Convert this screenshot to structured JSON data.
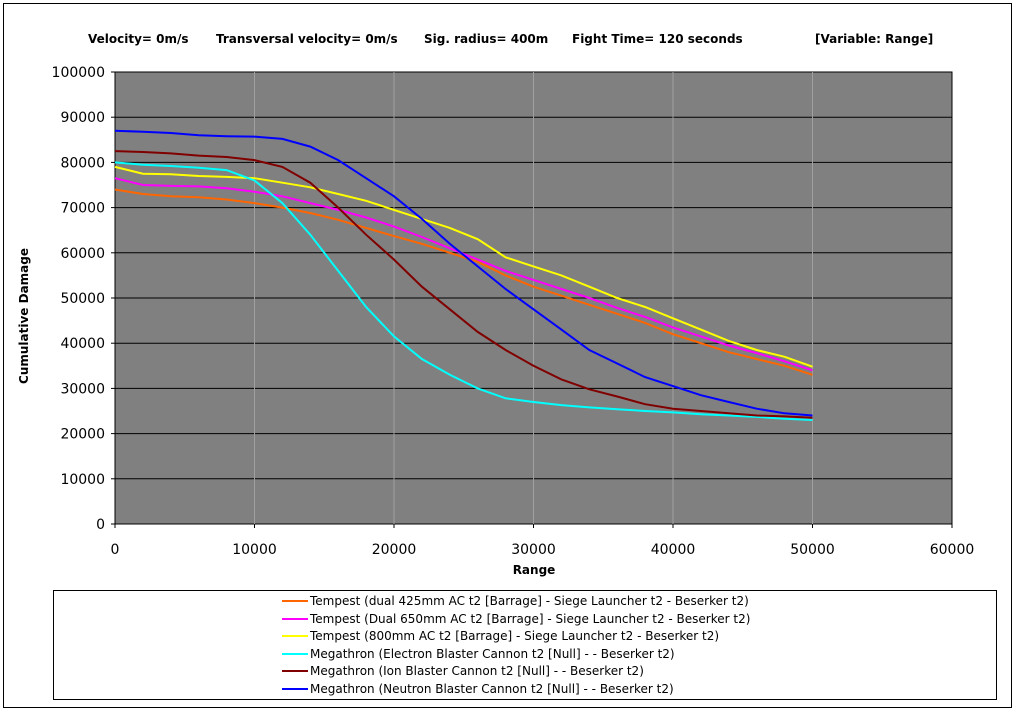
{
  "header": {
    "velocity": "Velocity= 0m/s",
    "transversal": "Transversal velocity= 0m/s",
    "sig_radius": "Sig. radius= 400m",
    "fight_time": "Fight Time= 120 seconds",
    "variable": "[Variable: Range]"
  },
  "chart_data": {
    "type": "line",
    "title": "",
    "xlabel": "Range",
    "ylabel": "Cumulative Damage",
    "xlim": [
      0,
      60000
    ],
    "ylim": [
      0,
      100000
    ],
    "xticks": [
      "0",
      "10000",
      "20000",
      "30000",
      "40000",
      "50000",
      "60000"
    ],
    "yticks": [
      "0",
      "10000",
      "20000",
      "30000",
      "40000",
      "50000",
      "60000",
      "70000",
      "80000",
      "90000",
      "100000"
    ],
    "grid": "both",
    "plot_background": "#808080",
    "legend_position": "bottom",
    "x": [
      0,
      2000,
      4000,
      6000,
      8000,
      10000,
      12000,
      14000,
      16000,
      18000,
      20000,
      22000,
      24000,
      26000,
      28000,
      30000,
      32000,
      34000,
      36000,
      38000,
      40000,
      42000,
      44000,
      46000,
      48000,
      50000
    ],
    "series": [
      {
        "name": "Tempest (dual 425mm AC t2 [Barrage] - Siege Launcher t2 - Beserker t2)",
        "color": "#FF6600",
        "values": [
          74000,
          73000,
          72500,
          72300,
          71800,
          71000,
          70000,
          68800,
          67300,
          65500,
          63700,
          62000,
          60000,
          58000,
          55000,
          52500,
          50500,
          48500,
          46500,
          44500,
          42000,
          40000,
          38000,
          36500,
          35000,
          33000
        ]
      },
      {
        "name": "Tempest (Dual 650mm AC t2 [Barrage] - Siege Launcher t2 - Beserker t2)",
        "color": "#FF00FF",
        "values": [
          76500,
          75000,
          74800,
          74700,
          74300,
          73500,
          72500,
          71000,
          69500,
          67800,
          65800,
          63500,
          61000,
          58500,
          56000,
          54000,
          52000,
          50000,
          47800,
          45800,
          43500,
          41500,
          39500,
          37800,
          36000,
          34000
        ]
      },
      {
        "name": "Tempest (800mm AC t2 [Barrage] - Siege Launcher t2 - Beserker t2)",
        "color": "#FFFF00",
        "values": [
          79000,
          77500,
          77400,
          77000,
          76800,
          76500,
          75500,
          74500,
          73000,
          71500,
          69500,
          67500,
          65500,
          63000,
          59000,
          57000,
          55000,
          52500,
          50000,
          48000,
          45500,
          43000,
          40500,
          38500,
          37000,
          34800
        ]
      },
      {
        "name": "Megathron (Electron Blaster Cannon t2 [Null] -  - Beserker t2)",
        "color": "#00FFFF",
        "values": [
          80000,
          79500,
          79200,
          78800,
          78300,
          76000,
          71000,
          64000,
          56000,
          48000,
          41500,
          36500,
          33000,
          30000,
          27800,
          27000,
          26300,
          25800,
          25400,
          25000,
          24700,
          24300,
          24000,
          23700,
          23300,
          23000
        ]
      },
      {
        "name": "Megathron (Ion Blaster Cannon t2 [Null] -  - Beserker t2)",
        "color": "#800000",
        "values": [
          82500,
          82300,
          82000,
          81500,
          81200,
          80500,
          79000,
          75500,
          70000,
          64000,
          58500,
          52500,
          47500,
          42500,
          38500,
          35000,
          32000,
          29800,
          28200,
          26500,
          25500,
          25000,
          24500,
          24000,
          23800,
          23500
        ]
      },
      {
        "name": "Megathron (Neutron Blaster Cannon t2 [Null] -  - Beserker t2)",
        "color": "#0000FF",
        "values": [
          87000,
          86800,
          86500,
          86000,
          85800,
          85700,
          85200,
          83500,
          80500,
          76500,
          72500,
          67500,
          62000,
          57000,
          52000,
          47500,
          43000,
          38500,
          35500,
          32500,
          30500,
          28500,
          27000,
          25500,
          24500,
          24000
        ]
      }
    ]
  }
}
